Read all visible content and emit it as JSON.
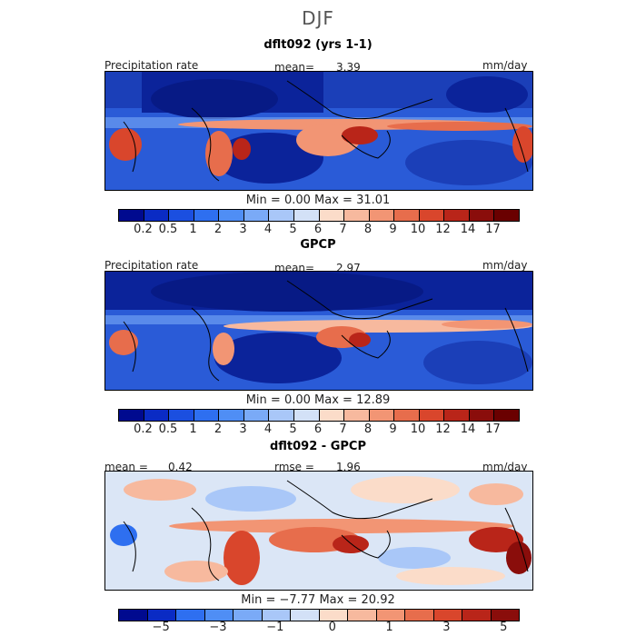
{
  "main_title": "DJF",
  "panels": [
    {
      "title": "dflt092 (yrs 1-1)",
      "left_label": "Precipitation rate",
      "center_label": "mean=",
      "center_value": "3.39",
      "right_label": "mm/day",
      "min_label": "Min =",
      "min_value": "0.00",
      "max_label": "Max =",
      "max_value": "31.01",
      "colorbar_ticks": [
        "0.2",
        "0.5",
        "1",
        "2",
        "3",
        "4",
        "5",
        "6",
        "7",
        "8",
        "9",
        "10",
        "12",
        "14",
        "17"
      ]
    },
    {
      "title": "GPCP",
      "left_label": "Precipitation rate",
      "center_label": "mean=",
      "center_value": "2.97",
      "right_label": "mm/day",
      "min_label": "Min =",
      "min_value": "0.00",
      "max_label": "Max =",
      "max_value": "12.89",
      "colorbar_ticks": [
        "0.2",
        "0.5",
        "1",
        "2",
        "3",
        "4",
        "5",
        "6",
        "7",
        "8",
        "9",
        "10",
        "12",
        "14",
        "17"
      ]
    },
    {
      "title": "dflt092 - GPCP",
      "left_label": "mean =",
      "left_value": "0.42",
      "center_label": "rmse =",
      "center_value": "1.96",
      "right_label": "mm/day",
      "min_label": "Min =",
      "min_value": "−7.77",
      "max_label": "Max =",
      "max_value": "20.92",
      "colorbar_ticks": [
        "−5",
        "−3",
        "−1",
        "0",
        "1",
        "3",
        "5"
      ]
    }
  ],
  "colors": {
    "precip_scale": [
      "#000a8f",
      "#0a2bc4",
      "#1b4fe0",
      "#2e6ff0",
      "#4f8ef5",
      "#7aaaf7",
      "#a9c7f8",
      "#d3e1f7",
      "#fbdcc9",
      "#f7b99e",
      "#f29574",
      "#e76d4c",
      "#d9462c",
      "#b92519",
      "#8a0d0b",
      "#6a0000"
    ],
    "diff_scale": [
      "#000a8f",
      "#0a2bc4",
      "#2e6ff0",
      "#4f8ef5",
      "#7aaaf7",
      "#a9c7f8",
      "#d3e1f7",
      "#fbdcc9",
      "#f7b99e",
      "#f29574",
      "#e76d4c",
      "#d9462c",
      "#b92519",
      "#8a0d0b"
    ]
  }
}
